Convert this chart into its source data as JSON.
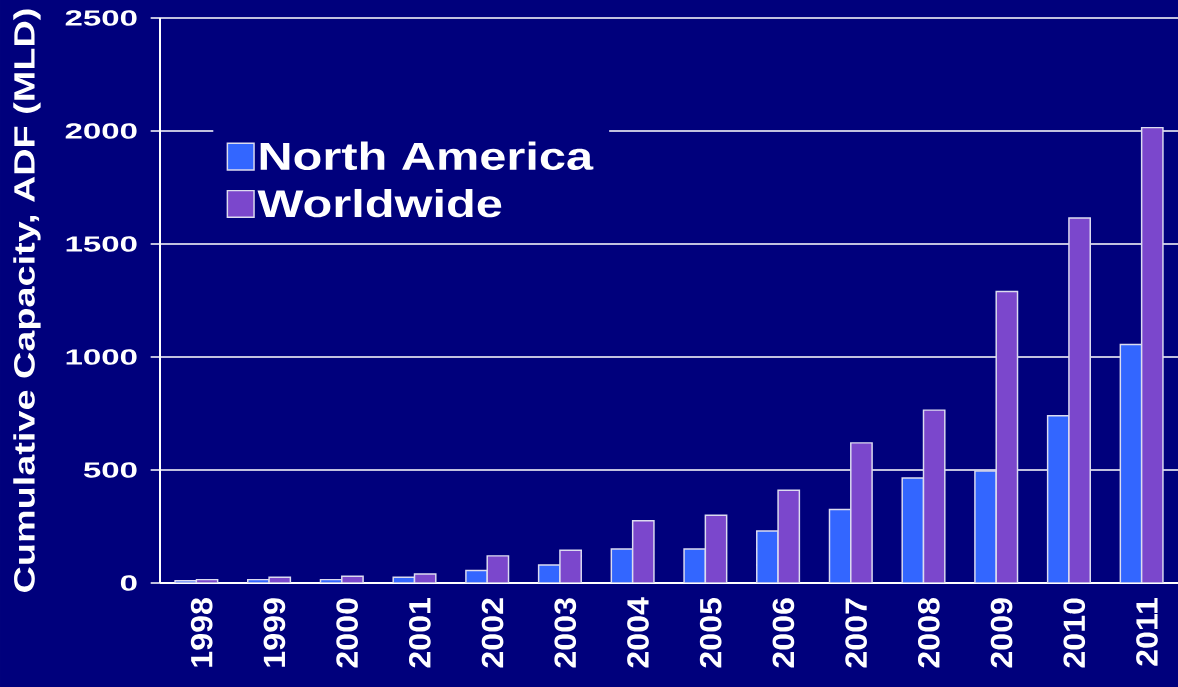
{
  "chart_data": {
    "type": "bar",
    "ylabel": "Cumulative Capacity, ADF (MLD)",
    "categories": [
      "1998",
      "1999",
      "2000",
      "2001",
      "2002",
      "2003",
      "2004",
      "2005",
      "2006",
      "2007",
      "2008",
      "2009",
      "2010",
      "2011"
    ],
    "series": [
      {
        "name": "North America",
        "color": "#3366ff",
        "values": [
          10,
          15,
          15,
          25,
          55,
          80,
          150,
          150,
          230,
          325,
          465,
          495,
          740,
          1055
        ]
      },
      {
        "name": "Worldwide",
        "color": "#7b47cc",
        "values": [
          15,
          25,
          30,
          40,
          120,
          145,
          275,
          300,
          410,
          620,
          765,
          1290,
          1615,
          2015
        ]
      }
    ],
    "ylim": [
      0,
      2500
    ],
    "yticks": [
      0,
      500,
      1000,
      1500,
      2000,
      2500
    ],
    "grid": "y",
    "legend": "top left"
  }
}
